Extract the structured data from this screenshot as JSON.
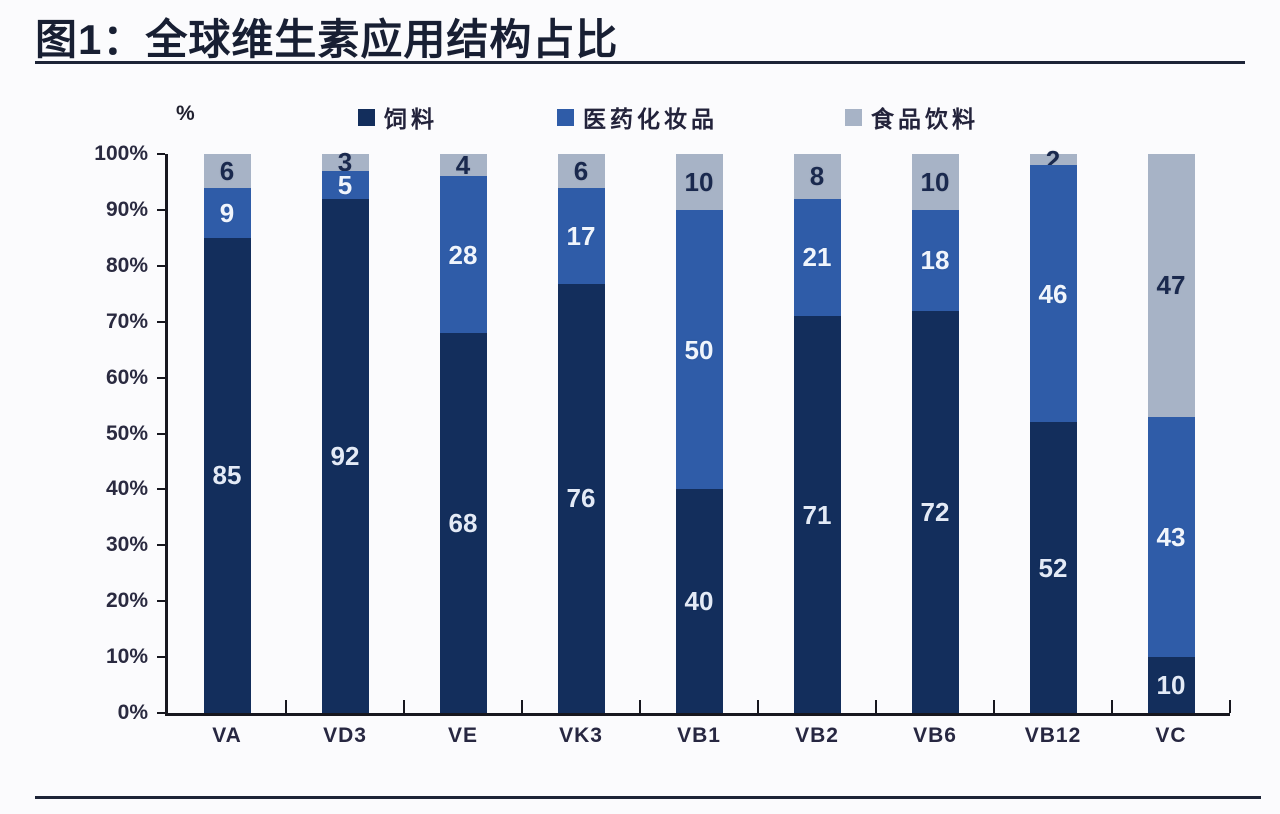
{
  "page": {
    "title": "图1：全球维生素应用结构占比"
  },
  "chart_data": {
    "type": "bar",
    "stacked": true,
    "normalized_to_100": true,
    "title": "图1：全球维生素应用结构占比",
    "unit_label": "%",
    "categories": [
      "VA",
      "VD3",
      "VE",
      "VK3",
      "VB1",
      "VB2",
      "VB6",
      "VB12",
      "VC"
    ],
    "series": [
      {
        "key": "feed",
        "name": "饲料",
        "color": "#132e5c",
        "label_color": "#e3eaf6",
        "values": [
          85,
          92,
          68,
          76,
          40,
          71,
          72,
          52,
          10
        ]
      },
      {
        "key": "pharma-cosmetics",
        "name": "医药化妆品",
        "color": "#2f5ca8",
        "label_color": "#f0f5fc",
        "values": [
          9,
          5,
          28,
          17,
          50,
          21,
          18,
          46,
          43
        ]
      },
      {
        "key": "food-beverage",
        "name": "食品饮料",
        "color": "#a7b3c6",
        "label_color": "#1a294e",
        "values": [
          6,
          3,
          4,
          6,
          10,
          8,
          10,
          2,
          47
        ]
      }
    ],
    "ylabel": "%",
    "ylim": [
      0,
      100
    ],
    "yticks": [
      "100%",
      "90%",
      "80%",
      "70%",
      "60%",
      "50%",
      "40%",
      "30%",
      "20%",
      "10%",
      "0%"
    ],
    "legend_position": "top",
    "grid": false,
    "accent_rule_color": "#1d2437"
  }
}
